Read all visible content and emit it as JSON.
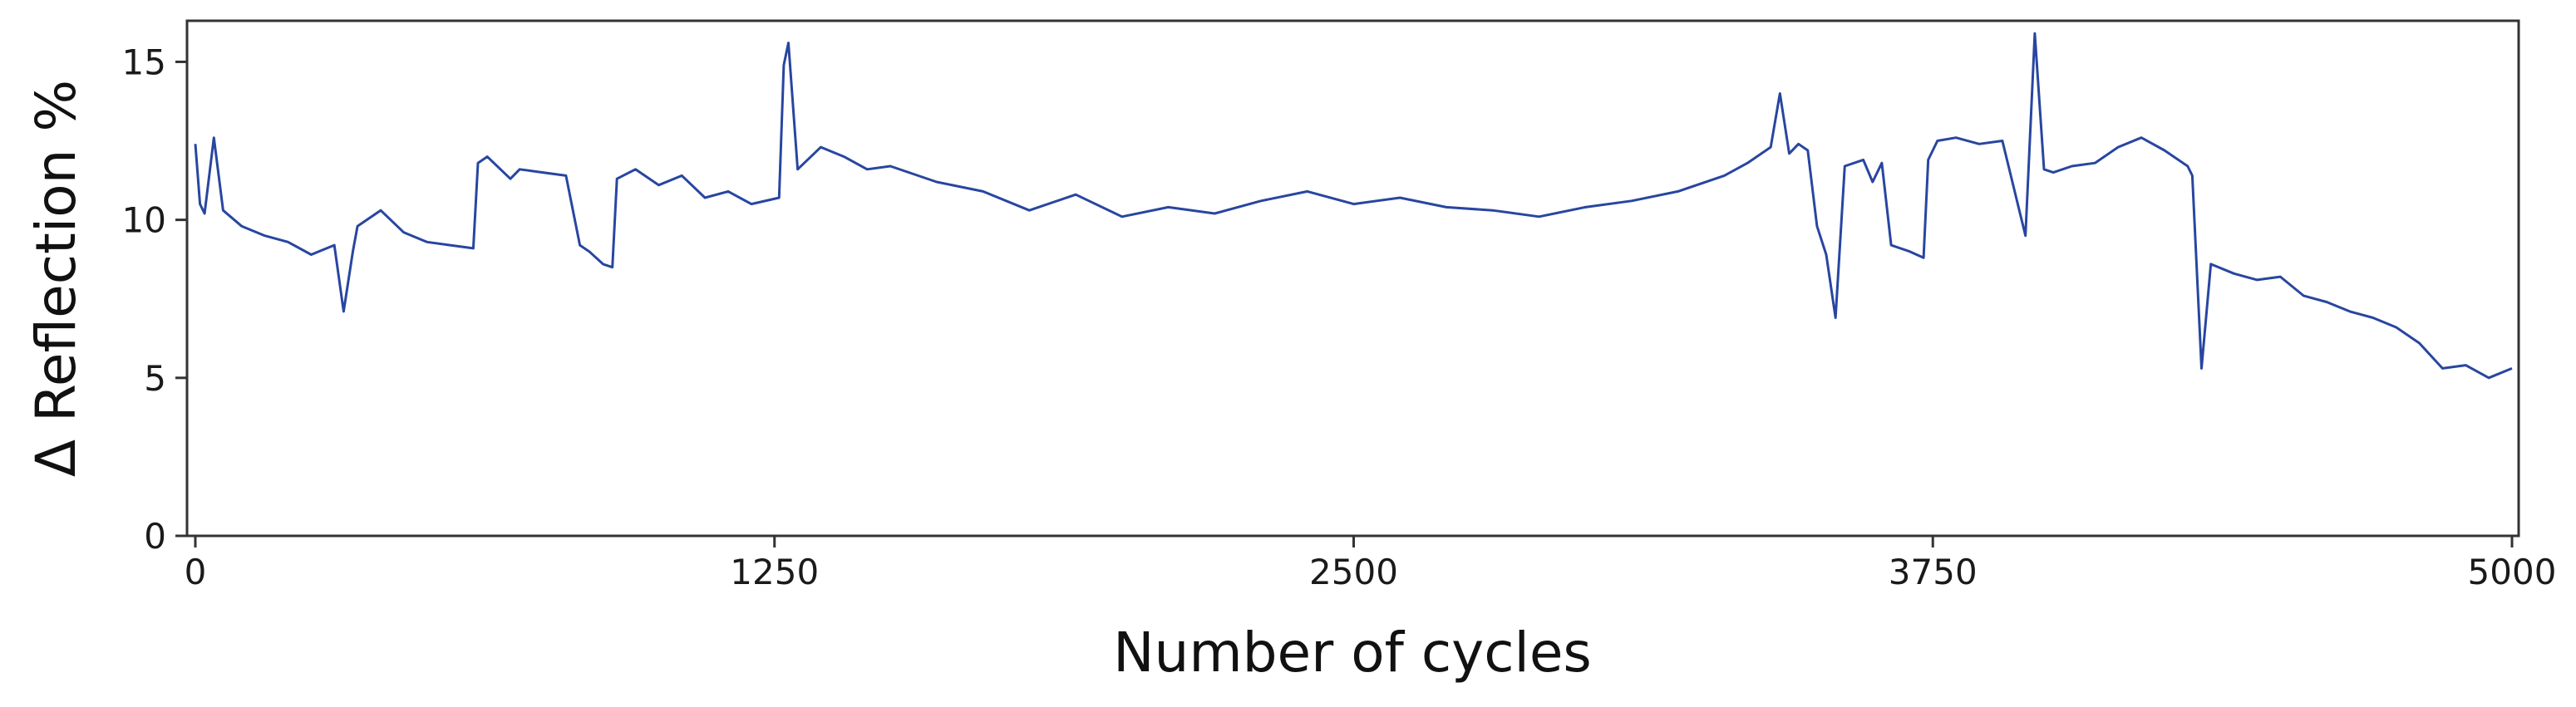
{
  "chart_data": {
    "type": "line",
    "title": "",
    "xlabel": "Number of cycles",
    "ylabel": "Δ Reflection %",
    "xlim": [
      0,
      5000
    ],
    "ylim": [
      0,
      16.3
    ],
    "xticks": [
      0,
      1250,
      2500,
      3750,
      5000
    ],
    "yticks": [
      0,
      5,
      10,
      15
    ],
    "grid": false,
    "legend": "none",
    "colors": {
      "line": "#2846a0",
      "axis": "#333333"
    },
    "series": [
      {
        "x": [
          0,
          10,
          20,
          40,
          60,
          100,
          150,
          200,
          250,
          300,
          320,
          340,
          350,
          400,
          450,
          500,
          550,
          600,
          610,
          630,
          680,
          700,
          750,
          800,
          830,
          850,
          880,
          900,
          910,
          950,
          1000,
          1050,
          1100,
          1150,
          1200,
          1260,
          1270,
          1280,
          1300,
          1350,
          1400,
          1450,
          1500,
          1600,
          1700,
          1800,
          1900,
          2000,
          2100,
          2200,
          2300,
          2400,
          2500,
          2600,
          2700,
          2800,
          2900,
          3000,
          3100,
          3200,
          3300,
          3350,
          3400,
          3420,
          3440,
          3460,
          3480,
          3500,
          3520,
          3540,
          3560,
          3600,
          3620,
          3640,
          3660,
          3700,
          3730,
          3740,
          3760,
          3800,
          3850,
          3900,
          3950,
          3970,
          3990,
          4010,
          4050,
          4100,
          4150,
          4200,
          4250,
          4300,
          4310,
          4330,
          4350,
          4400,
          4450,
          4500,
          4550,
          4600,
          4650,
          4700,
          4750,
          4800,
          4850,
          4900,
          4950,
          5000
        ],
        "y": [
          12.4,
          10.5,
          10.2,
          12.6,
          10.3,
          9.8,
          9.5,
          9.3,
          8.9,
          9.2,
          7.1,
          9.0,
          9.8,
          10.3,
          9.6,
          9.3,
          9.2,
          9.1,
          11.8,
          12.0,
          11.3,
          11.6,
          11.5,
          11.4,
          9.2,
          9.0,
          8.6,
          8.5,
          11.3,
          11.6,
          11.1,
          11.4,
          10.7,
          10.9,
          10.5,
          10.7,
          14.9,
          15.6,
          11.6,
          12.3,
          12.0,
          11.6,
          11.7,
          11.2,
          10.9,
          10.3,
          10.8,
          10.1,
          10.4,
          10.2,
          10.6,
          10.9,
          10.5,
          10.7,
          10.4,
          10.3,
          10.1,
          10.4,
          10.6,
          10.9,
          11.4,
          11.8,
          12.3,
          14.0,
          12.1,
          12.4,
          12.2,
          9.8,
          8.9,
          6.9,
          11.7,
          11.9,
          11.2,
          11.8,
          9.2,
          9.0,
          8.8,
          11.9,
          12.5,
          12.6,
          12.4,
          12.5,
          9.5,
          15.9,
          11.6,
          11.5,
          11.7,
          11.8,
          12.3,
          12.6,
          12.2,
          11.7,
          11.4,
          5.3,
          8.6,
          8.3,
          8.1,
          8.2,
          7.6,
          7.4,
          7.1,
          6.9,
          6.6,
          6.1,
          5.3,
          5.4,
          5.0,
          5.3
        ]
      }
    ]
  }
}
